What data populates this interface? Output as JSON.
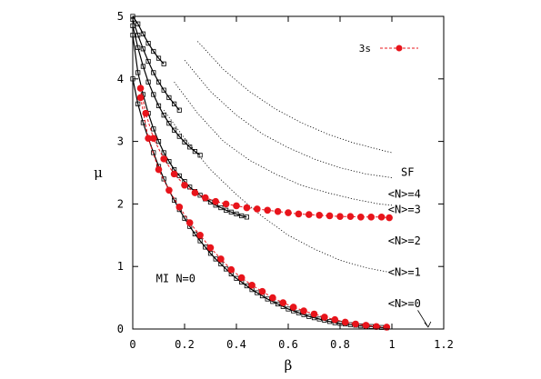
{
  "chart_data": {
    "type": "line",
    "xlabel": "β",
    "ylabel": "μ",
    "xlim": [
      0,
      1.2
    ],
    "ylim": [
      0,
      5
    ],
    "xticks": [
      "0",
      "0.2",
      "0.4",
      "0.6",
      "0.8",
      "1",
      "1.2"
    ],
    "yticks": [
      "0",
      "1",
      "2",
      "3",
      "4",
      "5"
    ],
    "xtick_values": [
      0,
      0.2,
      0.4,
      0.6,
      0.8,
      1.0,
      1.2
    ],
    "ytick_values": [
      0,
      1,
      2,
      3,
      4,
      5
    ],
    "grid": false,
    "legend": {
      "placement": "top-right",
      "entries": [
        "3s"
      ]
    },
    "annotations": {
      "mi": "MI N=0",
      "sf": "SF",
      "n4": "<N>=4",
      "n3": "<N>=3",
      "n2": "<N>=2",
      "n1": "<N>=1",
      "n0": "<N>=0"
    },
    "series": [
      {
        "kind": "squares",
        "x": [
          0.0,
          0.02,
          0.04,
          0.06,
          0.08,
          0.1,
          0.12,
          0.14,
          0.16,
          0.18,
          0.2,
          0.22,
          0.24,
          0.26,
          0.28,
          0.3,
          0.32,
          0.34,
          0.36,
          0.38,
          0.4,
          0.42,
          0.44,
          0.46,
          0.48,
          0.5,
          0.52,
          0.54,
          0.56,
          0.58,
          0.6,
          0.62,
          0.64,
          0.66,
          0.68,
          0.7,
          0.72,
          0.74,
          0.76,
          0.78,
          0.8,
          0.82,
          0.84,
          0.86,
          0.88,
          0.9,
          0.92,
          0.94,
          0.96,
          0.98
        ],
        "y": [
          4.0,
          3.6,
          3.3,
          3.05,
          2.82,
          2.6,
          2.4,
          2.22,
          2.06,
          1.91,
          1.77,
          1.64,
          1.52,
          1.41,
          1.31,
          1.21,
          1.12,
          1.04,
          0.96,
          0.88,
          0.81,
          0.75,
          0.69,
          0.63,
          0.58,
          0.53,
          0.48,
          0.44,
          0.4,
          0.36,
          0.32,
          0.29,
          0.26,
          0.23,
          0.2,
          0.18,
          0.16,
          0.14,
          0.12,
          0.1,
          0.09,
          0.08,
          0.07,
          0.06,
          0.05,
          0.045,
          0.04,
          0.03,
          0.025,
          0.02
        ]
      },
      {
        "kind": "squares",
        "x": [
          0.0,
          0.02,
          0.04,
          0.06,
          0.08,
          0.1,
          0.12,
          0.14,
          0.16,
          0.18,
          0.2,
          0.22,
          0.24,
          0.26,
          0.28,
          0.3,
          0.32,
          0.34,
          0.36,
          0.38,
          0.4,
          0.42,
          0.44
        ],
        "y": [
          4.7,
          4.1,
          3.75,
          3.45,
          3.2,
          3.0,
          2.82,
          2.68,
          2.55,
          2.45,
          2.36,
          2.27,
          2.2,
          2.14,
          2.08,
          2.03,
          1.98,
          1.94,
          1.9,
          1.87,
          1.84,
          1.81,
          1.79
        ]
      },
      {
        "kind": "squares",
        "x": [
          0.0,
          0.02,
          0.04,
          0.06,
          0.08,
          0.1,
          0.12,
          0.14,
          0.16,
          0.18,
          0.2,
          0.22,
          0.24,
          0.26
        ],
        "y": [
          4.85,
          4.5,
          4.2,
          3.95,
          3.75,
          3.57,
          3.42,
          3.29,
          3.18,
          3.08,
          2.99,
          2.91,
          2.84,
          2.78
        ]
      },
      {
        "kind": "squares",
        "x": [
          0.0,
          0.02,
          0.04,
          0.06,
          0.08,
          0.1,
          0.12,
          0.14,
          0.16,
          0.18
        ],
        "y": [
          4.95,
          4.7,
          4.48,
          4.28,
          4.1,
          3.95,
          3.82,
          3.7,
          3.6,
          3.5
        ]
      },
      {
        "kind": "squares",
        "x": [
          0.0,
          0.02,
          0.04,
          0.06,
          0.08,
          0.1,
          0.12
        ],
        "y": [
          5.0,
          4.88,
          4.72,
          4.57,
          4.44,
          4.33,
          4.24
        ]
      },
      {
        "kind": "dotted",
        "x": [
          0.12,
          0.2,
          0.3,
          0.4,
          0.5,
          0.6,
          0.7,
          0.8,
          0.9,
          1.0
        ],
        "y": [
          3.5,
          3.05,
          2.55,
          2.15,
          1.8,
          1.5,
          1.28,
          1.1,
          0.98,
          0.9
        ]
      },
      {
        "kind": "dotted",
        "x": [
          0.16,
          0.25,
          0.35,
          0.45,
          0.55,
          0.65,
          0.75,
          0.85,
          0.95,
          1.0
        ],
        "y": [
          3.95,
          3.45,
          3.0,
          2.7,
          2.48,
          2.3,
          2.18,
          2.08,
          2.0,
          1.98
        ]
      },
      {
        "kind": "dotted",
        "x": [
          0.2,
          0.3,
          0.4,
          0.5,
          0.6,
          0.7,
          0.8,
          0.9,
          1.0
        ],
        "y": [
          4.3,
          3.8,
          3.42,
          3.12,
          2.9,
          2.72,
          2.58,
          2.48,
          2.42
        ]
      },
      {
        "kind": "dotted",
        "x": [
          0.25,
          0.35,
          0.45,
          0.55,
          0.65,
          0.75,
          0.85,
          0.95,
          1.0
        ],
        "y": [
          4.6,
          4.15,
          3.8,
          3.52,
          3.3,
          3.12,
          2.98,
          2.87,
          2.82
        ]
      },
      {
        "kind": "red",
        "name": "3s",
        "x": [
          0.03,
          0.06,
          0.1,
          0.14,
          0.18,
          0.22,
          0.26,
          0.3,
          0.34,
          0.38,
          0.42,
          0.46,
          0.5,
          0.54,
          0.58,
          0.62,
          0.66,
          0.7,
          0.74,
          0.78,
          0.82,
          0.86,
          0.9,
          0.94,
          0.98
        ],
        "y": [
          3.7,
          3.05,
          2.55,
          2.22,
          1.95,
          1.7,
          1.5,
          1.3,
          1.12,
          0.95,
          0.82,
          0.7,
          0.6,
          0.5,
          0.42,
          0.35,
          0.29,
          0.24,
          0.19,
          0.15,
          0.11,
          0.08,
          0.06,
          0.04,
          0.03
        ]
      },
      {
        "kind": "red",
        "x": [
          0.03,
          0.05,
          0.08,
          0.12,
          0.16,
          0.2,
          0.24,
          0.28,
          0.32,
          0.36,
          0.4,
          0.44,
          0.48,
          0.52,
          0.56,
          0.6,
          0.64,
          0.68,
          0.72,
          0.76,
          0.8,
          0.84,
          0.88,
          0.92,
          0.96,
          0.99
        ],
        "y": [
          3.85,
          3.45,
          3.05,
          2.72,
          2.48,
          2.3,
          2.18,
          2.1,
          2.04,
          2.0,
          1.97,
          1.94,
          1.92,
          1.9,
          1.88,
          1.86,
          1.84,
          1.83,
          1.82,
          1.81,
          1.8,
          1.8,
          1.79,
          1.79,
          1.79,
          1.78
        ]
      }
    ]
  }
}
